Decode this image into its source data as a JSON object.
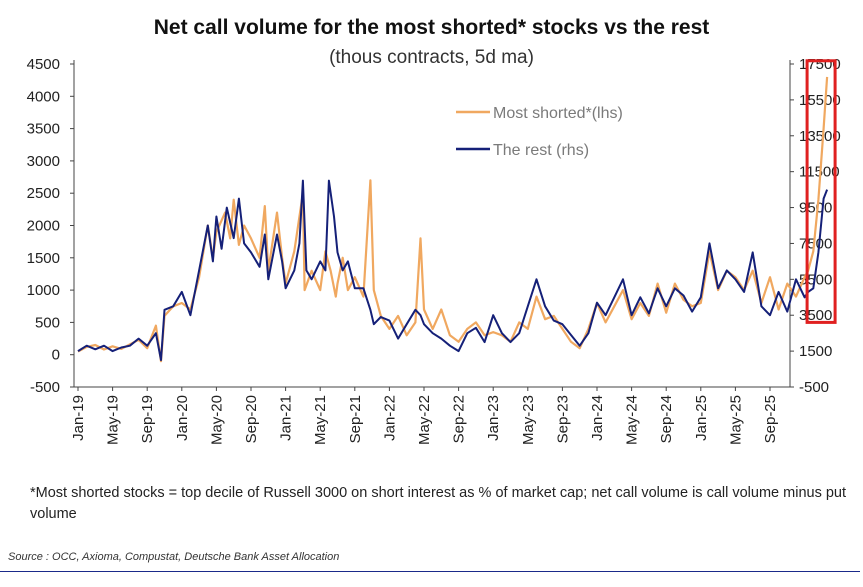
{
  "chart_data": {
    "type": "line",
    "title": "Net call volume for the most shorted* stocks vs the rest",
    "subtitle": "(thous contracts, 5d ma)",
    "x": [
      "Jan-19",
      "May-19",
      "Sep-19",
      "Jan-20",
      "May-20",
      "Sep-20",
      "Jan-21",
      "May-21",
      "Sep-21",
      "Jan-22",
      "May-22",
      "Sep-22",
      "Jan-23",
      "May-23",
      "Sep-23",
      "Jan-24",
      "May-24",
      "Sep-24",
      "Jan-25",
      "May-25",
      "Sep-25"
    ],
    "y_left": {
      "ylim": [
        -500,
        4500
      ],
      "ticks": [
        -500,
        0,
        500,
        1000,
        1500,
        2000,
        2500,
        3000,
        3500,
        4000,
        4500
      ]
    },
    "y_right": {
      "ylim": [
        -500,
        17500
      ],
      "ticks": [
        -500,
        1500,
        3500,
        5500,
        7500,
        9500,
        11500,
        13500,
        15500,
        17500
      ]
    },
    "legend_position": "top-right",
    "series": [
      {
        "name": "Most shorted*(lhs)",
        "axis": "left",
        "color": "#f0a860",
        "values": [
          [
            0,
            50
          ],
          [
            0.5,
            120
          ],
          [
            1,
            150
          ],
          [
            1.5,
            80
          ],
          [
            2,
            130
          ],
          [
            2.5,
            90
          ],
          [
            3,
            160
          ],
          [
            3.5,
            230
          ],
          [
            4,
            100
          ],
          [
            4.5,
            450
          ],
          [
            4.8,
            -100
          ],
          [
            5,
            600
          ],
          [
            5.5,
            750
          ],
          [
            6,
            800
          ],
          [
            6.5,
            700
          ],
          [
            7,
            1200
          ],
          [
            7.5,
            2000
          ],
          [
            7.8,
            1500
          ],
          [
            8,
            1900
          ],
          [
            8.5,
            2200
          ],
          [
            8.8,
            1800
          ],
          [
            9,
            2400
          ],
          [
            9.3,
            1700
          ],
          [
            9.6,
            2000
          ],
          [
            10,
            1800
          ],
          [
            10.5,
            1500
          ],
          [
            10.8,
            2300
          ],
          [
            11,
            1300
          ],
          [
            11.5,
            2200
          ],
          [
            11.8,
            1500
          ],
          [
            12,
            1100
          ],
          [
            12.5,
            1600
          ],
          [
            13,
            2500
          ],
          [
            13.1,
            1000
          ],
          [
            13.5,
            1300
          ],
          [
            14,
            1000
          ],
          [
            14.3,
            1600
          ],
          [
            14.6,
            1300
          ],
          [
            14.9,
            900
          ],
          [
            15,
            1100
          ],
          [
            15.3,
            1500
          ],
          [
            15.6,
            1000
          ],
          [
            16,
            1200
          ],
          [
            16.5,
            900
          ],
          [
            16.9,
            2700
          ],
          [
            17.1,
            1000
          ],
          [
            17.5,
            600
          ],
          [
            18,
            400
          ],
          [
            18.5,
            600
          ],
          [
            19,
            300
          ],
          [
            19.5,
            500
          ],
          [
            19.8,
            1800
          ],
          [
            20,
            700
          ],
          [
            20.5,
            400
          ],
          [
            21,
            700
          ],
          [
            21.5,
            300
          ],
          [
            22,
            200
          ],
          [
            22.5,
            400
          ],
          [
            23,
            500
          ],
          [
            23.5,
            300
          ],
          [
            24,
            350
          ],
          [
            24.5,
            300
          ],
          [
            25,
            200
          ],
          [
            25.5,
            500
          ],
          [
            26,
            400
          ],
          [
            26.5,
            900
          ],
          [
            27,
            550
          ],
          [
            27.5,
            600
          ],
          [
            28,
            400
          ],
          [
            28.5,
            200
          ],
          [
            29,
            100
          ],
          [
            29.5,
            400
          ],
          [
            30,
            800
          ],
          [
            30.5,
            500
          ],
          [
            31,
            750
          ],
          [
            31.5,
            1000
          ],
          [
            32,
            550
          ],
          [
            32.5,
            800
          ],
          [
            33,
            600
          ],
          [
            33.5,
            1100
          ],
          [
            34,
            650
          ],
          [
            34.5,
            1100
          ],
          [
            35,
            850
          ],
          [
            35.5,
            750
          ],
          [
            36,
            800
          ],
          [
            36.5,
            1600
          ],
          [
            37,
            1000
          ],
          [
            37.5,
            1300
          ],
          [
            38,
            1200
          ],
          [
            38.5,
            1000
          ],
          [
            39,
            1300
          ],
          [
            39.5,
            800
          ],
          [
            40,
            1200
          ],
          [
            40.5,
            700
          ],
          [
            41,
            1100
          ],
          [
            41.5,
            900
          ],
          [
            42,
            1200
          ],
          [
            42.2,
            1300
          ],
          [
            42.5,
            1600
          ],
          [
            42.8,
            2400
          ],
          [
            43.1,
            3500
          ],
          [
            43.3,
            4300
          ]
        ]
      },
      {
        "name": "The rest (rhs)",
        "axis": "right",
        "color": "#152078",
        "values": [
          [
            0,
            1500
          ],
          [
            0.5,
            1800
          ],
          [
            1,
            1600
          ],
          [
            1.5,
            1800
          ],
          [
            2,
            1500
          ],
          [
            2.5,
            1700
          ],
          [
            3,
            1800
          ],
          [
            3.5,
            2200
          ],
          [
            4,
            1800
          ],
          [
            4.5,
            2500
          ],
          [
            4.8,
            1000
          ],
          [
            5,
            3800
          ],
          [
            5.5,
            4000
          ],
          [
            6,
            4800
          ],
          [
            6.5,
            3500
          ],
          [
            7,
            6000
          ],
          [
            7.5,
            8500
          ],
          [
            7.8,
            6500
          ],
          [
            8,
            9000
          ],
          [
            8.3,
            7200
          ],
          [
            8.6,
            9500
          ],
          [
            9,
            7800
          ],
          [
            9.3,
            10000
          ],
          [
            9.6,
            7500
          ],
          [
            10,
            7000
          ],
          [
            10.5,
            6200
          ],
          [
            10.8,
            8000
          ],
          [
            11,
            5500
          ],
          [
            11.5,
            8000
          ],
          [
            11.8,
            6500
          ],
          [
            12,
            5000
          ],
          [
            12.5,
            6000
          ],
          [
            12.8,
            7500
          ],
          [
            13,
            11000
          ],
          [
            13.2,
            6000
          ],
          [
            13.5,
            5500
          ],
          [
            14,
            6500
          ],
          [
            14.3,
            6000
          ],
          [
            14.5,
            11000
          ],
          [
            14.8,
            9000
          ],
          [
            15,
            7000
          ],
          [
            15.3,
            6000
          ],
          [
            15.6,
            6500
          ],
          [
            16,
            5000
          ],
          [
            16.5,
            5000
          ],
          [
            16.9,
            3800
          ],
          [
            17.1,
            3000
          ],
          [
            17.5,
            3400
          ],
          [
            18,
            3200
          ],
          [
            18.5,
            2200
          ],
          [
            19,
            3000
          ],
          [
            19.5,
            3800
          ],
          [
            19.8,
            3500
          ],
          [
            20,
            3000
          ],
          [
            20.5,
            2500
          ],
          [
            21,
            2200
          ],
          [
            21.5,
            1800
          ],
          [
            22,
            1500
          ],
          [
            22.5,
            2500
          ],
          [
            23,
            2800
          ],
          [
            23.5,
            2000
          ],
          [
            24,
            3500
          ],
          [
            24.5,
            2500
          ],
          [
            25,
            2000
          ],
          [
            25.5,
            2500
          ],
          [
            26,
            4000
          ],
          [
            26.5,
            5500
          ],
          [
            27,
            4000
          ],
          [
            27.5,
            3200
          ],
          [
            28,
            3000
          ],
          [
            28.5,
            2400
          ],
          [
            29,
            1800
          ],
          [
            29.5,
            2500
          ],
          [
            30,
            4200
          ],
          [
            30.5,
            3500
          ],
          [
            31,
            4500
          ],
          [
            31.5,
            5500
          ],
          [
            32,
            3500
          ],
          [
            32.5,
            4500
          ],
          [
            33,
            3600
          ],
          [
            33.5,
            5000
          ],
          [
            34,
            4000
          ],
          [
            34.5,
            5000
          ],
          [
            35,
            4600
          ],
          [
            35.5,
            3700
          ],
          [
            36,
            4500
          ],
          [
            36.5,
            7500
          ],
          [
            37,
            5000
          ],
          [
            37.5,
            6000
          ],
          [
            38,
            5500
          ],
          [
            38.5,
            4800
          ],
          [
            39,
            7000
          ],
          [
            39.5,
            4000
          ],
          [
            40,
            3500
          ],
          [
            40.5,
            4800
          ],
          [
            41,
            3700
          ],
          [
            41.5,
            5500
          ],
          [
            42,
            4500
          ],
          [
            42.2,
            4800
          ],
          [
            42.5,
            5000
          ],
          [
            42.8,
            7000
          ],
          [
            43.1,
            10000
          ],
          [
            43.3,
            10500
          ]
        ]
      }
    ]
  },
  "footnote": "*Most shorted stocks = top decile of Russell 3000 on short interest as % of market cap; net call volume is call volume minus put volume",
  "source": "Source : OCC, Axioma, Compustat, Deutsche Bank Asset Allocation",
  "highlight_color": "#e02020"
}
